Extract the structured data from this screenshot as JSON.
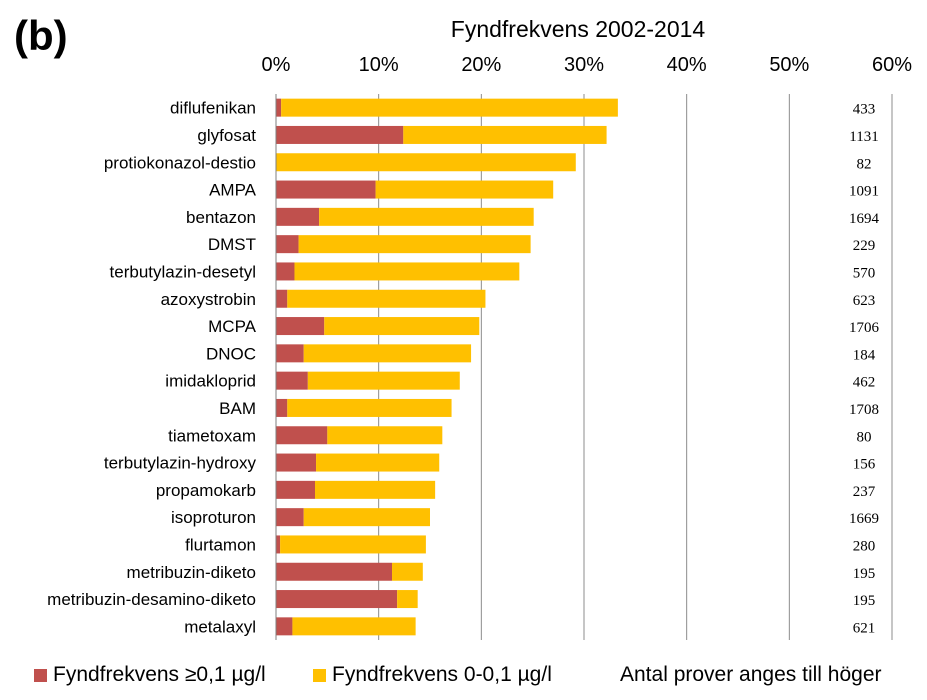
{
  "panel_label": "(b)",
  "colors": {
    "high": "#C0504D",
    "low": "#FFC000",
    "grid": "#8c8c8c"
  },
  "legend": {
    "high_label": "Fyndfrekvens ≥0,1 µg/l",
    "low_label": "Fyndfrekvens 0-0,1 µg/l",
    "note": "Antal prover anges till höger"
  },
  "chart_data": {
    "type": "bar",
    "orientation": "horizontal",
    "stacked": true,
    "title": "Fyndfrekvens 2002-2014",
    "xlim": [
      0,
      60
    ],
    "ticks": [
      "0%",
      "10%",
      "20%",
      "30%",
      "40%",
      "50%",
      "60%"
    ],
    "categories": [
      "diflufenikan",
      "glyfosat",
      "protiokonazol-destio",
      "AMPA",
      "bentazon",
      "DMST",
      "terbutylazin-desetyl",
      "azoxystrobin",
      "MCPA",
      "DNOC",
      "imidakloprid",
      "BAM",
      "tiametoxam",
      "terbutylazin-hydroxy",
      "propamokarb",
      "isoproturon",
      "flurtamon",
      "metribuzin-diketo",
      "metribuzin-desamino-diketo",
      "metalaxyl"
    ],
    "series": [
      {
        "name": "Fyndfrekvens ≥0,1 µg/l",
        "values": [
          0.5,
          12.4,
          0,
          9.7,
          4.2,
          2.2,
          1.8,
          1.1,
          4.7,
          2.7,
          3.1,
          1.1,
          5.0,
          3.9,
          3.8,
          2.7,
          0.4,
          11.3,
          11.8,
          1.6
        ]
      },
      {
        "name": "Fyndfrekvens 0-0,1 µg/l",
        "values": [
          32.8,
          19.8,
          29.2,
          17.3,
          20.9,
          22.6,
          21.9,
          19.3,
          15.1,
          16.3,
          14.8,
          16.0,
          11.2,
          12.0,
          11.7,
          12.3,
          14.2,
          3.0,
          2.0,
          12.0
        ]
      }
    ],
    "sample_counts": [
      "433",
      "1131",
      "82",
      "1091",
      "1694",
      "229",
      "570",
      "623",
      "1706",
      "184",
      "462",
      "1708",
      "80",
      "156",
      "237",
      "1669",
      "280",
      "195",
      "195",
      "621"
    ]
  }
}
